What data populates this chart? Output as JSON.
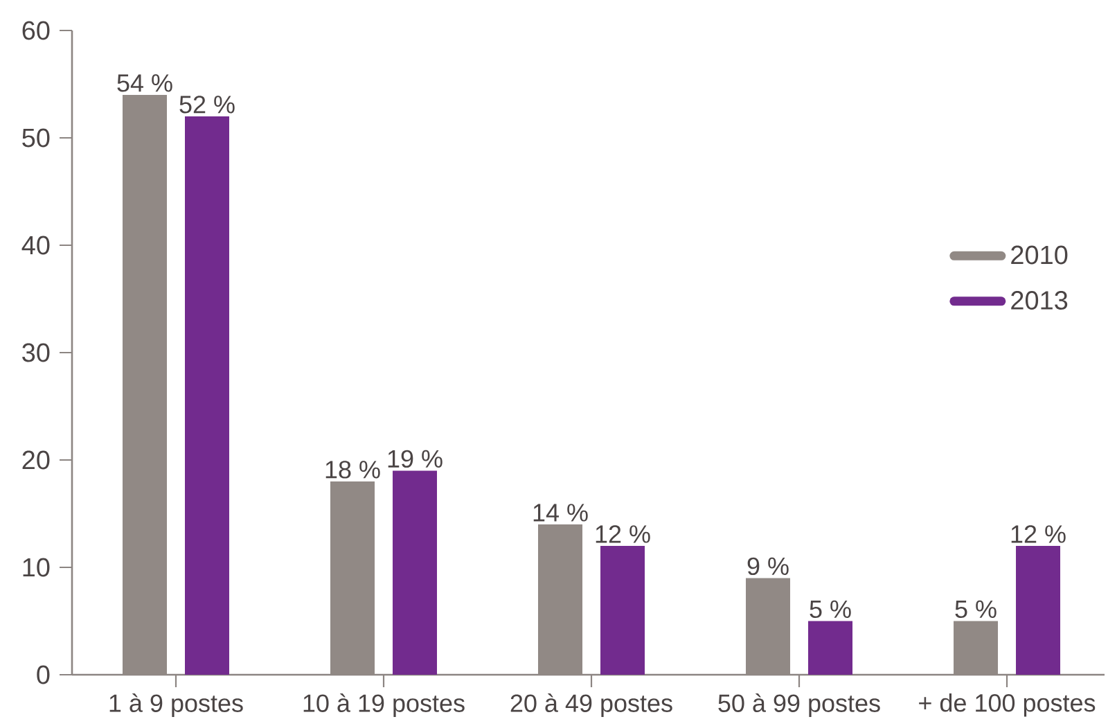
{
  "chart_data": {
    "type": "bar",
    "categories": [
      "1 à 9 postes",
      "10 à 19 postes",
      "20 à 49 postes",
      "50 à 99 postes",
      "+ de 100 postes"
    ],
    "series": [
      {
        "name": "2010",
        "color": "#918985",
        "values": [
          54,
          18,
          14,
          9,
          5
        ],
        "value_labels": [
          "54 %",
          "18 %",
          "14 %",
          "9 %",
          "5 %"
        ]
      },
      {
        "name": "2013",
        "color": "#722b8e",
        "values": [
          52,
          19,
          12,
          5,
          12
        ],
        "value_labels": [
          "52 %",
          "19 %",
          "12 %",
          "5 %",
          "12 %"
        ]
      }
    ],
    "ylim": [
      0,
      60
    ],
    "yticks": [
      0,
      10,
      20,
      30,
      40,
      50,
      60
    ],
    "legend": "right"
  }
}
